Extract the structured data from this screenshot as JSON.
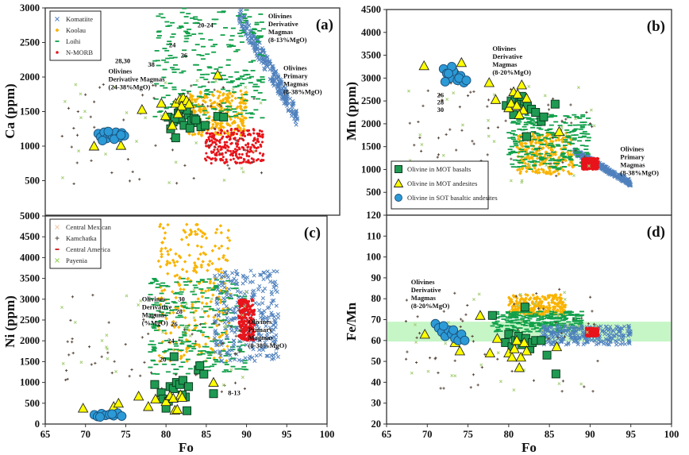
{
  "chart_data": [
    {
      "id": "a",
      "type": "scatter",
      "panel_label": "(a)",
      "xlabel": "",
      "ylabel": "Ca (ppm)",
      "xlim": [
        65,
        100
      ],
      "ylim": [
        0,
        3000
      ],
      "yticks": [
        500,
        1000,
        1500,
        2000,
        2500,
        3000
      ],
      "xticks": [],
      "legend": {
        "placement": "top-left",
        "entries": [
          {
            "label": "Komatiite",
            "marker": "x",
            "color": "#4f81bd"
          },
          {
            "label": "Koolau",
            "marker": "diamond",
            "color": "#f9b300"
          },
          {
            "label": "Loihi",
            "marker": "dash",
            "color": "#12a14b"
          },
          {
            "label": "N-MORB",
            "marker": "dot",
            "color": "#e8141b"
          }
        ]
      },
      "annotations": [
        {
          "text": [
            "Olivines",
            "Derivative",
            "Magmas",
            "(8-13%MgO)"
          ],
          "x": 91.5,
          "y": 2850
        },
        {
          "text": [
            "Olivines",
            "Primary",
            "Magmas",
            "(8-38%MgO)"
          ],
          "x": 93.3,
          "y": 2100
        },
        {
          "text": [
            "Olivines",
            "Derivative Magmas",
            "(24-38%MgO)"
          ],
          "x": 72.5,
          "y": 2050
        },
        {
          "text": [
            "28,30"
          ],
          "x": 73.3,
          "y": 2200
        },
        {
          "text": [
            "38"
          ],
          "x": 77.2,
          "y": 2150
        },
        {
          "text": [
            "24"
          ],
          "x": 79.7,
          "y": 2430
        },
        {
          "text": [
            "26"
          ],
          "x": 81.1,
          "y": 2280
        },
        {
          "text": [
            "20-24"
          ],
          "x": 83.1,
          "y": 2720
        }
      ],
      "series": [
        {
          "name": "Komatiite",
          "marker": "x",
          "color": "#4f81bd",
          "x_range": [
            88,
            95
          ],
          "y_range": [
            1400,
            2900
          ],
          "trend": "decreasing"
        },
        {
          "name": "Koolau",
          "marker": "diamond",
          "color": "#f9b300",
          "x_range": [
            82,
            89
          ],
          "y_range": [
            1150,
            1800
          ]
        },
        {
          "name": "Loihi",
          "marker": "dash",
          "color": "#12a14b",
          "x_range": [
            78,
            91
          ],
          "y_range": [
            1400,
            3000
          ]
        },
        {
          "name": "N-MORB",
          "marker": "dot",
          "color": "#e8141b",
          "x_range": [
            84,
            91
          ],
          "y_range": [
            750,
            1250
          ]
        },
        {
          "name": "Olivine in MOT basalts",
          "marker": "square",
          "color": "#1f9a52",
          "x": [
            79.6,
            80.2,
            80.8,
            81.2,
            81.5,
            82.0,
            82.4,
            82.7,
            83.0,
            83.5,
            84.0,
            85.5,
            86.2,
            80.5,
            81.8,
            82.9,
            79.9,
            81.0,
            82.2,
            80.4
          ],
          "y": [
            1420,
            1350,
            1480,
            1380,
            1300,
            1450,
            1370,
            1400,
            1340,
            1280,
            1300,
            1430,
            1420,
            1120,
            1520,
            1380,
            1250,
            1550,
            1260,
            1400
          ]
        },
        {
          "name": "Olivine in MOT andesites",
          "marker": "triangle",
          "color": "#ffff00",
          "x": [
            70.8,
            73.5,
            74.0,
            76.5,
            78.8,
            79.3,
            80.5,
            81.0,
            81.4,
            81.8,
            82.1,
            81.2,
            80.8,
            85.5,
            80.1
          ],
          "y": [
            1000,
            1140,
            1010,
            1530,
            1620,
            1440,
            1620,
            1680,
            1700,
            1660,
            1610,
            1580,
            1470,
            2030,
            1300
          ]
        },
        {
          "name": "Olivine in SOT basaltic andesites",
          "marker": "circle",
          "color": "#2c9ad6",
          "x": [
            71.3,
            71.6,
            72.0,
            72.3,
            72.7,
            73.0,
            73.4,
            73.8,
            74.1,
            74.4,
            71.8,
            72.5,
            73.2,
            74.0
          ],
          "y": [
            1180,
            1130,
            1200,
            1110,
            1170,
            1140,
            1200,
            1130,
            1190,
            1150,
            1080,
            1210,
            1100,
            1160
          ]
        }
      ]
    },
    {
      "id": "b",
      "type": "scatter",
      "panel_label": "(b)",
      "xlabel": "",
      "ylabel": "Mn (ppm)",
      "xlim": [
        65,
        100
      ],
      "ylim": [
        0,
        4500
      ],
      "yticks": [
        500,
        1000,
        1500,
        2000,
        2500,
        3000,
        3500,
        4000,
        4500
      ],
      "xticks": [],
      "legend": {
        "placement": "bottom-left",
        "entries": [
          {
            "label": "Olivine in MOT basalts",
            "marker": "square",
            "color": "#1f9a52"
          },
          {
            "label": "Olivine in MOT andesites",
            "marker": "triangle",
            "color": "#ffff00"
          },
          {
            "label": "Olivine in SOT basaltic andesites",
            "marker": "circle",
            "color": "#2c9ad6"
          }
        ]
      },
      "annotations": [
        {
          "text": [
            "Olivines",
            "Derivative",
            "Magmas",
            "(8-20%MgO)"
          ],
          "x": 78.0,
          "y": 3600
        },
        {
          "text": [
            "Olivines",
            "Primary",
            "Magmas",
            "(8-38%MgO)"
          ],
          "x": 93.7,
          "y": 1400
        },
        {
          "text": [
            "26"
          ],
          "x": 71.2,
          "y": 2580
        },
        {
          "text": [
            "28"
          ],
          "x": 71.2,
          "y": 2420
        },
        {
          "text": [
            "30"
          ],
          "x": 71.2,
          "y": 2260
        }
      ],
      "series": [
        {
          "name": "Komatiite",
          "marker": "x",
          "color": "#4f81bd",
          "x_range": [
            88,
            95
          ],
          "y_range": [
            700,
            1400
          ],
          "trend": "decreasing"
        },
        {
          "name": "Koolau",
          "marker": "diamond",
          "color": "#f9b300",
          "x_range": [
            81,
            88
          ],
          "y_range": [
            900,
            1800
          ]
        },
        {
          "name": "Loihi",
          "marker": "dash",
          "color": "#12a14b",
          "x_range": [
            80,
            90
          ],
          "y_range": [
            1000,
            2200
          ]
        },
        {
          "name": "N-MORB",
          "marker": "dot",
          "color": "#e8141b",
          "x_range": [
            89,
            91
          ],
          "y_range": [
            1000,
            1250
          ]
        },
        {
          "name": "Olivine in MOT basalts",
          "marker": "square",
          "color": "#1f9a52",
          "x": [
            79.7,
            80.3,
            80.8,
            81.3,
            81.9,
            82.3,
            82.8,
            83.3,
            84.0,
            85.7,
            84.3,
            82.2,
            80.6,
            81.6
          ],
          "y": [
            2400,
            2500,
            2550,
            2450,
            2500,
            2380,
            2320,
            2250,
            2050,
            2430,
            2150,
            1720,
            2200,
            2600
          ]
        },
        {
          "name": "Olivine in MOT andesites",
          "marker": "triangle",
          "color": "#ffff00",
          "x": [
            69.6,
            73.4,
            74.2,
            77.6,
            78.4,
            80.0,
            80.6,
            81.1,
            81.6,
            82.2,
            80.3,
            81.0,
            81.8,
            86.2,
            81.3
          ],
          "y": [
            3270,
            3180,
            3340,
            2900,
            2530,
            2350,
            2700,
            2650,
            2850,
            2560,
            2450,
            2400,
            2300,
            1830,
            2200
          ]
        },
        {
          "name": "Olivine in SOT basaltic andesites",
          "marker": "circle",
          "color": "#2c9ad6",
          "x": [
            72.0,
            72.4,
            72.8,
            73.2,
            73.7,
            74.1,
            74.5,
            72.2,
            73.0,
            73.9,
            74.8,
            72.6
          ],
          "y": [
            3200,
            3100,
            3000,
            3150,
            2950,
            3050,
            2900,
            2920,
            3250,
            3000,
            2950,
            3100
          ]
        }
      ]
    },
    {
      "id": "c",
      "type": "scatter",
      "panel_label": "(c)",
      "xlabel": "Fo",
      "ylabel": "Ni (ppm)",
      "xlim": [
        65,
        100
      ],
      "ylim": [
        0,
        5000
      ],
      "xticks": [
        65,
        70,
        75,
        80,
        85,
        90,
        95,
        100
      ],
      "yticks": [
        0,
        500,
        1000,
        1500,
        2000,
        2500,
        3000,
        3500,
        4000,
        4500,
        5000
      ],
      "legend": {
        "placement": "top-left",
        "entries": [
          {
            "label": "Central Mexican",
            "marker": "x",
            "color": "#f5c6a5"
          },
          {
            "label": "Kamchatka",
            "marker": "plus",
            "color": "#5a4a3f"
          },
          {
            "label": "Central America",
            "marker": "dash",
            "color": "#d3151b"
          },
          {
            "label": "Payenia",
            "marker": "x",
            "color": "#92d050"
          }
        ]
      },
      "annotations": [
        {
          "text": [
            "Olivines",
            "Derivative",
            "Magmas",
            "(%MgO)"
          ],
          "x": 77.0,
          "y": 2950
        },
        {
          "text": [
            "Olivines",
            "Primary",
            "Magmas",
            "(8-38%MgO)"
          ],
          "x": 90.2,
          "y": 2400
        },
        {
          "text": [
            "30"
          ],
          "x": 81.5,
          "y": 2950
        },
        {
          "text": [
            "28"
          ],
          "x": 81.2,
          "y": 2650
        },
        {
          "text": [
            "26"
          ],
          "x": 80.6,
          "y": 2350
        },
        {
          "text": [
            "24"
          ],
          "x": 80.2,
          "y": 1950
        },
        {
          "text": [
            "20"
          ],
          "x": 79.2,
          "y": 1500
        },
        {
          "text": [
            "8-13"
          ],
          "x": 87.7,
          "y": 700
        }
      ],
      "series": [
        {
          "name": "Koolau",
          "marker": "diamond",
          "color": "#f9b300",
          "x_range": [
            79,
            88
          ],
          "y_range": [
            1500,
            4800
          ]
        },
        {
          "name": "Loihi",
          "marker": "dash",
          "color": "#12a14b",
          "x_range": [
            78,
            90
          ],
          "y_range": [
            1200,
            3500
          ]
        },
        {
          "name": "Komatiite",
          "marker": "x",
          "color": "#4f81bd",
          "x_range": [
            86,
            94
          ],
          "y_range": [
            1500,
            3700
          ]
        },
        {
          "name": "N-MORB",
          "marker": "dot",
          "color": "#e8141b",
          "x_range": [
            89,
            91
          ],
          "y_range": [
            2000,
            3000
          ]
        },
        {
          "name": "Olivine in MOT basalts",
          "marker": "square",
          "color": "#1f9a52",
          "x": [
            78.6,
            79.4,
            79.6,
            80.0,
            80.5,
            80.9,
            81.3,
            81.7,
            82.1,
            82.4,
            82.8,
            82.6,
            84.0,
            84.2,
            84.7,
            85.9,
            81.0,
            82.0,
            80.3
          ],
          "y": [
            950,
            750,
            600,
            380,
            900,
            850,
            1000,
            950,
            1050,
            650,
            900,
            320,
            1300,
            1400,
            1200,
            730,
            1620,
            700,
            550
          ]
        },
        {
          "name": "Olivine in MOT andesites",
          "marker": "triangle",
          "color": "#ffff00",
          "x": [
            69.7,
            73.5,
            74.1,
            76.6,
            77.8,
            78.7,
            80.0,
            80.5,
            80.9,
            81.1,
            81.4,
            81.8,
            82.0,
            85.9
          ],
          "y": [
            380,
            420,
            500,
            670,
            420,
            600,
            540,
            680,
            620,
            330,
            350,
            700,
            640,
            1000
          ]
        },
        {
          "name": "Olivine in SOT basaltic andesites",
          "marker": "circle",
          "color": "#2c9ad6",
          "x": [
            71.1,
            71.5,
            72.0,
            72.5,
            73.0,
            73.5,
            74.0,
            74.5,
            71.8,
            73.3
          ],
          "y": [
            220,
            180,
            250,
            210,
            230,
            200,
            260,
            190,
            170,
            240
          ]
        }
      ]
    },
    {
      "id": "d",
      "type": "scatter",
      "panel_label": "(d)",
      "xlabel": "Fo",
      "ylabel": "Fe/Mn",
      "xlim": [
        65,
        100
      ],
      "ylim": [
        20,
        120
      ],
      "xticks": [
        65,
        70,
        75,
        80,
        85,
        90,
        95,
        100
      ],
      "yticks": [
        20,
        30,
        40,
        50,
        60,
        70,
        80,
        90,
        100,
        110,
        120
      ],
      "shaded_band": {
        "y_range": [
          59.5,
          69
        ],
        "color": "#c6f5c6"
      },
      "annotations": [
        {
          "text": [
            "Olivines",
            "Derivative",
            "Magmas",
            "(8-20%MgO)"
          ],
          "x": 68.0,
          "y": 87
        }
      ],
      "series": [
        {
          "name": "Koolau",
          "marker": "diamond",
          "color": "#f9b300",
          "x_range": [
            80,
            87
          ],
          "y_range": [
            72,
            82
          ]
        },
        {
          "name": "Loihi",
          "marker": "dash",
          "color": "#12a14b",
          "x_range": [
            78,
            89
          ],
          "y_range": [
            64,
            74
          ]
        },
        {
          "name": "Komatiite",
          "marker": "x",
          "color": "#4f81bd",
          "x_range": [
            84,
            95
          ],
          "y_range": [
            58,
            67
          ]
        },
        {
          "name": "N-MORB",
          "marker": "dot",
          "color": "#e8141b",
          "x_range": [
            89.5,
            91
          ],
          "y_range": [
            62,
            66
          ]
        },
        {
          "name": "Olivine in MOT basalts",
          "marker": "square",
          "color": "#1f9a52",
          "x": [
            78.0,
            79.6,
            80.0,
            80.4,
            80.8,
            81.2,
            81.6,
            82.1,
            82.6,
            82.9,
            83.3,
            84.0,
            84.7,
            85.8,
            82.0
          ],
          "y": [
            72,
            59,
            63,
            57,
            60,
            62,
            58,
            61,
            56,
            59,
            60,
            60,
            53,
            44,
            76
          ]
        },
        {
          "name": "Olivine in MOT andesites",
          "marker": "triangle",
          "color": "#ffff00",
          "x": [
            69.7,
            73.4,
            74.0,
            76.5,
            77.7,
            78.6,
            80.0,
            80.4,
            80.7,
            81.0,
            81.3,
            81.5,
            81.9,
            82.2,
            85.9
          ],
          "y": [
            63,
            59,
            55,
            72,
            54,
            61,
            54,
            52,
            56,
            60,
            47,
            52,
            59,
            55,
            57
          ]
        },
        {
          "name": "Olivine in SOT basaltic andesites",
          "marker": "circle",
          "color": "#2c9ad6",
          "x": [
            71.0,
            71.4,
            71.8,
            72.2,
            72.6,
            73.0,
            73.4,
            73.8,
            74.2,
            74.6,
            72.0,
            73.2
          ],
          "y": [
            68,
            66,
            64,
            62,
            65,
            63,
            61,
            60,
            63,
            60,
            67,
            65
          ]
        }
      ]
    }
  ]
}
